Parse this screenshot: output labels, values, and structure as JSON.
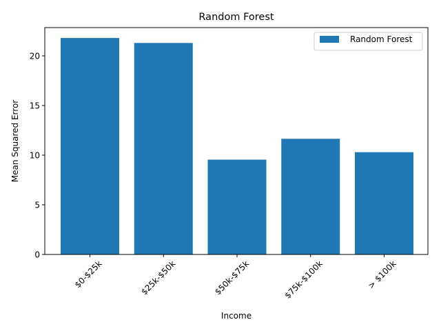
{
  "chart_data": {
    "type": "bar",
    "title": "Random Forest",
    "xlabel": "Income",
    "ylabel": "Mean Squared Error",
    "categories": [
      "$0-$25k",
      "$25k-$50k",
      "$50k-$75k",
      "$75k-$100k",
      "> $100k"
    ],
    "series": [
      {
        "name": "Random Forest",
        "values": [
          21.8,
          21.3,
          9.55,
          11.65,
          10.3
        ]
      }
    ],
    "ylim": [
      0,
      22.85
    ],
    "yticks": [
      0,
      5,
      10,
      15,
      20
    ],
    "bar_color": "#1f77b4",
    "legend_position": "top-right",
    "grid": false
  }
}
